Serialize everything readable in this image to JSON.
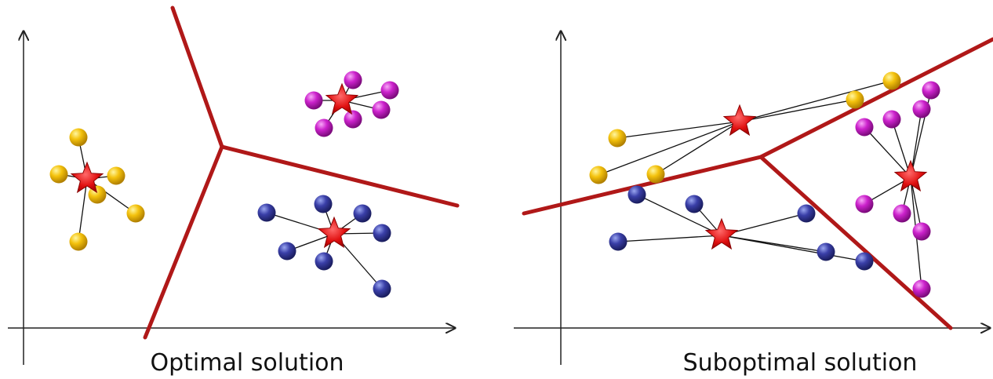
{
  "panels": [
    {
      "caption": "Optimal solution"
    },
    {
      "caption": "Suboptimal solution"
    }
  ]
}
